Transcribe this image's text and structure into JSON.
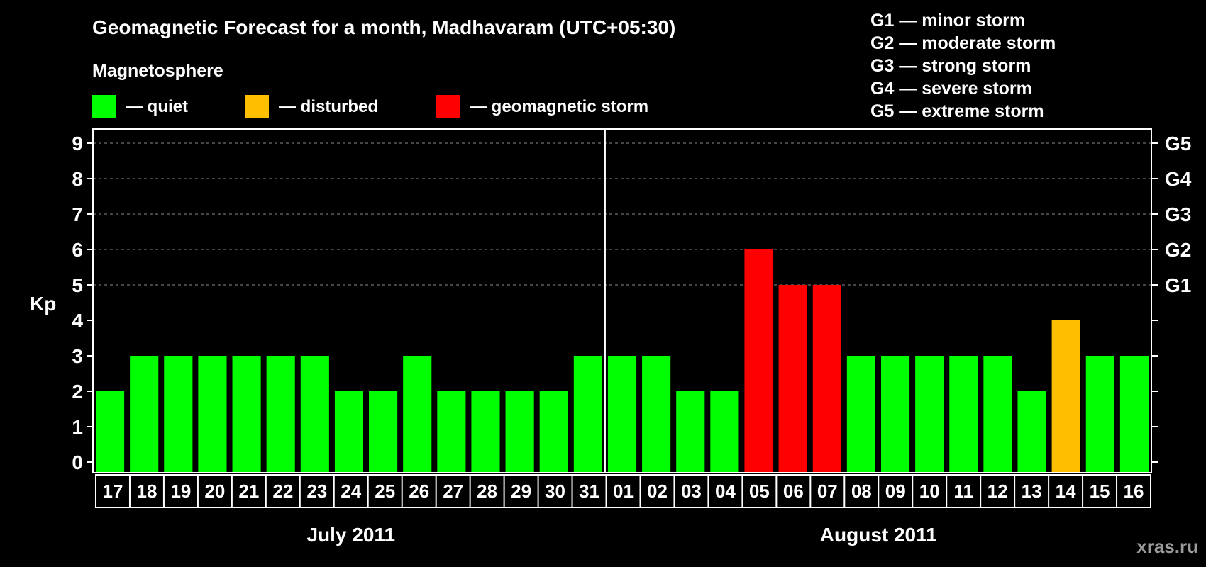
{
  "title": "Geomagnetic Forecast for a month, Madhavaram (UTC+05:30)",
  "legend": {
    "heading": "Magnetosphere",
    "items": [
      {
        "label": "— quiet",
        "color": "#00ff00"
      },
      {
        "label": "— disturbed",
        "color": "#ffbf00"
      },
      {
        "label": "— geomagnetic storm",
        "color": "#ff0000"
      }
    ]
  },
  "storm_scale": [
    "G1 — minor storm",
    "G2 — moderate storm",
    "G3 — strong storm",
    "G4 — severe storm",
    "G5 — extreme storm"
  ],
  "watermark": "xras.ru",
  "chart_data": {
    "type": "bar",
    "ylabel": "Kp",
    "ylim": [
      0,
      9
    ],
    "yticks": [
      "0",
      "1",
      "2",
      "3",
      "4",
      "5",
      "6",
      "7",
      "8",
      "9"
    ],
    "right_ticks": [
      {
        "kp": 5,
        "label": "G1"
      },
      {
        "kp": 6,
        "label": "G2"
      },
      {
        "kp": 7,
        "label": "G3"
      },
      {
        "kp": 8,
        "label": "G4"
      },
      {
        "kp": 9,
        "label": "G5"
      }
    ],
    "grid": true,
    "months": [
      {
        "label": "July 2011",
        "start": 0,
        "count": 15
      },
      {
        "label": "August 2011",
        "start": 15,
        "count": 16
      }
    ],
    "categories": [
      "17",
      "18",
      "19",
      "20",
      "21",
      "22",
      "23",
      "24",
      "25",
      "26",
      "27",
      "28",
      "29",
      "30",
      "31",
      "01",
      "02",
      "03",
      "04",
      "05",
      "06",
      "07",
      "08",
      "09",
      "10",
      "11",
      "12",
      "13",
      "14",
      "15",
      "16"
    ],
    "values": [
      2,
      3,
      3,
      3,
      3,
      3,
      3,
      2,
      2,
      3,
      2,
      2,
      2,
      2,
      3,
      3,
      3,
      2,
      2,
      6,
      5,
      5,
      3,
      3,
      3,
      3,
      3,
      2,
      4,
      3,
      3
    ],
    "colors": {
      "quiet": "#00ff00",
      "disturbed": "#ffbf00",
      "storm": "#ff0000"
    }
  }
}
